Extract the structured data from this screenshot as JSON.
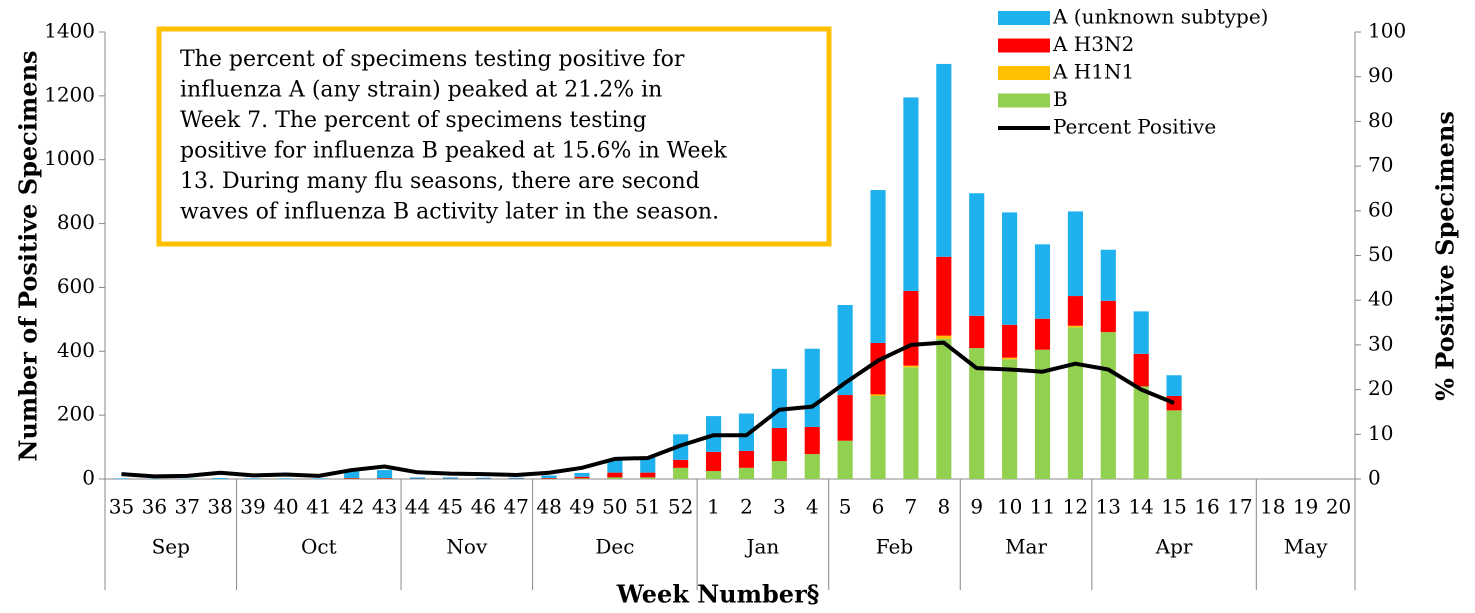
{
  "chart_data": {
    "type": "stacked_bar_line",
    "y_label": "Number of Positive Specimens",
    "y2_label": "% Positive Specimens",
    "x_label": "Week Number§",
    "annotation": [
      "The percent of specimens testing positive for",
      "influenza A (any strain) peaked at 21.2% in",
      "Week 7. The percent of specimens testing",
      "positive for influenza B peaked at 15.6% in Week",
      "13. During many flu seasons, there are second",
      "waves of influenza B activity later in the season."
    ],
    "categories": [
      "35",
      "36",
      "37",
      "38",
      "39",
      "40",
      "41",
      "42",
      "43",
      "44",
      "45",
      "46",
      "47",
      "48",
      "49",
      "50",
      "51",
      "52",
      "1",
      "2",
      "3",
      "4",
      "5",
      "6",
      "7",
      "8",
      "9",
      "10",
      "11",
      "12",
      "13",
      "14",
      "15",
      "16",
      "17",
      "18",
      "19",
      "20"
    ],
    "groups": [
      {
        "label": "Sep",
        "size": 4
      },
      {
        "label": "Oct",
        "size": 5
      },
      {
        "label": "Nov",
        "size": 4
      },
      {
        "label": "Dec",
        "size": 5
      },
      {
        "label": "Jan",
        "size": 4
      },
      {
        "label": "Feb",
        "size": 4
      },
      {
        "label": "Mar",
        "size": 4
      },
      {
        "label": "Apr",
        "size": 5
      },
      {
        "label": "May",
        "size": 3
      }
    ],
    "series": [
      {
        "name": "A (unknown subtype)",
        "color": "#1fb0ee",
        "values": [
          2,
          1,
          1,
          3,
          2,
          2,
          2,
          25,
          25,
          4,
          4,
          3,
          3,
          8,
          12,
          40,
          50,
          80,
          112,
          117,
          185,
          245,
          282,
          479,
          606,
          604,
          384,
          352,
          233,
          265,
          160,
          133,
          65,
          null,
          null,
          null,
          null,
          null
        ]
      },
      {
        "name": "A H3N2",
        "color": "#ff0000",
        "values": [
          0,
          0,
          0,
          0,
          0,
          0,
          0,
          2,
          2,
          1,
          1,
          1,
          1,
          2,
          5,
          15,
          15,
          25,
          60,
          53,
          104,
          85,
          143,
          161,
          234,
          247,
          101,
          103,
          97,
          93,
          98,
          102,
          45,
          null,
          null,
          null,
          null,
          null
        ]
      },
      {
        "name": "A H1N1",
        "color": "#ffc000",
        "values": [
          0,
          0,
          0,
          0,
          0,
          0,
          0,
          0,
          0,
          0,
          0,
          0,
          0,
          0,
          0,
          0,
          0,
          0,
          0,
          0,
          0,
          0,
          0,
          5,
          5,
          10,
          0,
          5,
          0,
          5,
          0,
          0,
          0,
          null,
          null,
          null,
          null,
          null
        ]
      },
      {
        "name": "B",
        "color": "#92d050",
        "values": [
          0,
          0,
          0,
          0,
          0,
          0,
          0,
          1,
          1,
          0,
          0,
          0,
          0,
          1,
          2,
          5,
          5,
          35,
          25,
          35,
          56,
          78,
          120,
          260,
          350,
          439,
          410,
          375,
          405,
          475,
          460,
          290,
          215,
          null,
          null,
          null,
          null,
          null
        ]
      },
      {
        "name": "Percent Positive",
        "color": "#000000",
        "axis": "y2",
        "values": [
          1.1,
          0.6,
          0.7,
          1.4,
          0.8,
          1.0,
          0.7,
          2.0,
          2.8,
          1.5,
          1.2,
          1.1,
          0.9,
          1.4,
          2.5,
          4.5,
          4.7,
          7.5,
          9.8,
          9.8,
          15.5,
          16.2,
          21.5,
          26.5,
          30,
          30.5,
          24.8,
          24.5,
          24,
          25.8,
          24.5,
          20,
          17,
          null,
          null,
          null,
          null,
          null
        ]
      }
    ],
    "ylim": [
      0,
      1400
    ],
    "yticks": [
      0,
      200,
      400,
      600,
      800,
      1000,
      1200,
      1400
    ],
    "y2lim": [
      0,
      100
    ],
    "y2ticks": [
      0,
      10,
      20,
      30,
      40,
      50,
      60,
      70,
      80,
      90,
      100
    ],
    "annotation_border": "#ffc000"
  }
}
